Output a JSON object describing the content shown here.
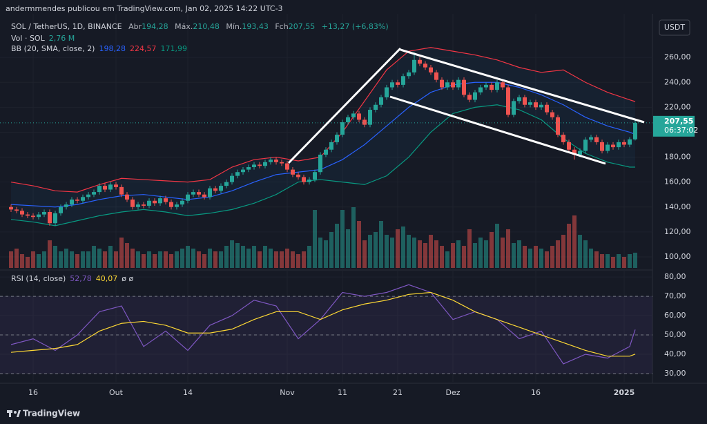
{
  "header": {
    "publisher": "andermmendes publicou em TradingView.com, Jan 02, 2025 14:22 UTC-3"
  },
  "footer": {
    "brand": "TradingView"
  },
  "chart_data": {
    "type": "candlestick",
    "symbol": "SOL / TetherUS, 1D, BINANCE",
    "ohlc_legend": [
      {
        "label": "Abr",
        "value": "194,28"
      },
      {
        "label": "Máx.",
        "value": "210,48"
      },
      {
        "label": "Mín.",
        "value": "193,43"
      },
      {
        "label": "Fch",
        "value": "207,55"
      }
    ],
    "change": "+13,27 (+6,83%)",
    "currency": "USDT",
    "last_price_label": "207,55",
    "countdown": "06:37:02",
    "up_color": "#26a69a",
    "down_color": "#ef5350",
    "open": [
      140,
      138,
      137,
      134,
      133,
      132,
      134,
      136,
      127,
      135,
      140,
      142,
      146,
      145,
      148,
      150,
      152,
      157,
      154,
      158,
      156,
      150,
      146,
      140,
      142,
      141,
      145,
      143,
      147,
      144,
      140,
      142,
      145,
      150,
      152,
      150,
      148,
      155,
      153,
      157,
      160,
      165,
      168,
      170,
      172,
      174,
      173,
      176,
      178,
      176,
      175,
      170,
      166,
      164,
      160,
      162,
      168,
      182,
      186,
      192,
      198,
      208,
      212,
      215,
      210,
      206,
      218,
      222,
      228,
      236,
      240,
      238,
      245,
      248,
      258,
      255,
      252,
      248,
      242,
      236,
      240,
      236,
      242,
      230,
      226,
      232,
      236,
      238,
      234,
      240,
      236,
      214,
      225,
      228,
      222,
      224,
      220,
      222,
      216,
      212,
      198,
      192,
      186,
      182,
      185,
      194,
      196,
      192,
      185,
      190,
      188,
      192,
      190,
      194.28
    ],
    "high": [
      142,
      140,
      139,
      136,
      135,
      136,
      138,
      138,
      137,
      142,
      144,
      148,
      148,
      150,
      152,
      154,
      159,
      159,
      160,
      160,
      158,
      152,
      148,
      144,
      144,
      147,
      147,
      149,
      149,
      146,
      144,
      147,
      152,
      154,
      154,
      152,
      157,
      157,
      159,
      162,
      167,
      170,
      172,
      174,
      176,
      176,
      178,
      180,
      180,
      178,
      177,
      172,
      168,
      166,
      164,
      170,
      184,
      188,
      194,
      200,
      210,
      214,
      217,
      217,
      212,
      220,
      224,
      230,
      238,
      242,
      242,
      247,
      250,
      264,
      260,
      257,
      254,
      250,
      244,
      242,
      242,
      244,
      244,
      232,
      234,
      238,
      240,
      240,
      242,
      242,
      238,
      227,
      230,
      230,
      226,
      226,
      224,
      224,
      218,
      214,
      200,
      194,
      188,
      187,
      196,
      198,
      198,
      194,
      192,
      192,
      194,
      194,
      196,
      210.48
    ],
    "low": [
      136,
      135,
      132,
      131,
      130,
      130,
      132,
      125,
      125,
      133,
      138,
      140,
      143,
      143,
      146,
      148,
      150,
      152,
      152,
      154,
      148,
      144,
      138,
      138,
      139,
      139,
      141,
      141,
      142,
      138,
      138,
      140,
      143,
      148,
      148,
      146,
      146,
      151,
      151,
      155,
      158,
      163,
      166,
      168,
      170,
      171,
      171,
      174,
      174,
      173,
      168,
      164,
      162,
      158,
      158,
      160,
      166,
      180,
      184,
      190,
      196,
      206,
      210,
      208,
      204,
      204,
      216,
      220,
      226,
      234,
      236,
      236,
      243,
      246,
      253,
      250,
      246,
      240,
      234,
      234,
      234,
      234,
      228,
      224,
      224,
      230,
      234,
      232,
      232,
      234,
      212,
      212,
      223,
      220,
      220,
      218,
      218,
      214,
      210,
      196,
      190,
      184,
      178,
      180,
      183,
      192,
      190,
      183,
      183,
      186,
      186,
      188,
      188,
      193.43
    ],
    "close": [
      138,
      137,
      134,
      133,
      132,
      134,
      136,
      127,
      135,
      140,
      142,
      146,
      145,
      148,
      150,
      152,
      157,
      154,
      158,
      156,
      150,
      146,
      140,
      142,
      141,
      145,
      143,
      147,
      144,
      140,
      142,
      145,
      150,
      152,
      150,
      148,
      155,
      153,
      157,
      160,
      165,
      168,
      170,
      172,
      174,
      173,
      176,
      178,
      176,
      175,
      170,
      166,
      164,
      160,
      162,
      168,
      182,
      186,
      192,
      198,
      208,
      212,
      215,
      210,
      206,
      218,
      222,
      228,
      236,
      240,
      238,
      245,
      248,
      258,
      255,
      252,
      248,
      242,
      236,
      240,
      236,
      242,
      230,
      226,
      232,
      236,
      238,
      234,
      240,
      236,
      214,
      225,
      228,
      222,
      224,
      220,
      222,
      216,
      212,
      198,
      192,
      186,
      182,
      185,
      194,
      196,
      192,
      185,
      190,
      188,
      192,
      190,
      194.28,
      207.55
    ],
    "volume": {
      "name": "Vol · SOL",
      "value_label": "2,76 M",
      "values": [
        3,
        3.5,
        2.5,
        2,
        3,
        2.5,
        3,
        5,
        4,
        3,
        3.5,
        3,
        2.5,
        3,
        3,
        4,
        3.5,
        3,
        4,
        3,
        5.5,
        4.5,
        3.5,
        3,
        2.5,
        3,
        2.5,
        3,
        3,
        2.5,
        3,
        3.5,
        4,
        3.5,
        3,
        2.5,
        3.5,
        3,
        3,
        4,
        5,
        4.5,
        4,
        3.5,
        4,
        3,
        4,
        3.5,
        3,
        3,
        3.5,
        3,
        2.5,
        3,
        4,
        10.5,
        5.5,
        5,
        6.5,
        8,
        10.5,
        7,
        11,
        8.5,
        5,
        6,
        6.5,
        8.5,
        6,
        5.5,
        7,
        7.5,
        6,
        5.5,
        5,
        4.5,
        6,
        5,
        4,
        3,
        4.5,
        5,
        4,
        7,
        4.5,
        5.5,
        5,
        6.5,
        8,
        5.5,
        7,
        4.5,
        5,
        4,
        3.5,
        4,
        3.5,
        3,
        4,
        5,
        6,
        8,
        9.5,
        6,
        5,
        3.5,
        3,
        2.5,
        2.5,
        2,
        2.5,
        2,
        2.5,
        2.76
      ]
    },
    "ylim": [
      90,
      295
    ],
    "yticks": [
      {
        "value": 100,
        "label": "100,00"
      },
      {
        "value": 120,
        "label": "120,00"
      },
      {
        "value": 140,
        "label": "140,00"
      },
      {
        "value": 160,
        "label": "160,00"
      },
      {
        "value": 180,
        "label": "180,00"
      },
      {
        "value": 200,
        "label": "200,00"
      },
      {
        "value": 220,
        "label": "220,00"
      },
      {
        "value": 240,
        "label": "240,00"
      },
      {
        "value": 260,
        "label": "260,00"
      }
    ],
    "xticks": [
      {
        "value": 4,
        "label": "16"
      },
      {
        "value": 19,
        "label": "Out"
      },
      {
        "value": 32,
        "label": "14"
      },
      {
        "value": 50,
        "label": "Nov"
      },
      {
        "value": 60,
        "label": "11"
      },
      {
        "value": 70,
        "label": "21"
      },
      {
        "value": 80,
        "label": "Dez"
      },
      {
        "value": 95,
        "label": "16"
      },
      {
        "value": 111,
        "label": "2025"
      }
    ],
    "bb": {
      "name": "BB (20, SMA, close, 2)",
      "x": [
        0,
        4,
        8,
        12,
        16,
        20,
        24,
        28,
        32,
        36,
        40,
        44,
        48,
        52,
        56,
        60,
        64,
        68,
        72,
        76,
        80,
        84,
        88,
        92,
        96,
        100,
        104,
        108,
        112,
        113
      ],
      "series": [
        {
          "color": "#2962ff",
          "value_label": "198,28",
          "values": [
            142,
            141,
            140,
            142,
            146,
            149,
            150,
            148,
            146,
            148,
            153,
            160,
            166,
            168,
            170,
            178,
            190,
            205,
            220,
            232,
            238,
            240,
            240,
            236,
            230,
            222,
            212,
            205,
            200,
            198.28
          ]
        },
        {
          "color": "#f23645",
          "value_label": "224,57",
          "values": [
            160,
            157,
            153,
            152,
            158,
            163,
            162,
            161,
            160,
            162,
            172,
            178,
            180,
            177,
            180,
            200,
            225,
            250,
            265,
            268,
            265,
            262,
            258,
            252,
            248,
            250,
            240,
            232,
            226,
            224.57
          ]
        },
        {
          "color": "#089981",
          "value_label": "171,99",
          "values": [
            130,
            128,
            125,
            129,
            133,
            136,
            138,
            136,
            133,
            135,
            138,
            143,
            150,
            160,
            162,
            160,
            158,
            165,
            180,
            200,
            215,
            220,
            222,
            218,
            210,
            195,
            183,
            176,
            172,
            171.99
          ]
        }
      ]
    },
    "rsi": {
      "name": "RSI (14, close)",
      "na_labels": "ø ø",
      "x": [
        0,
        4,
        8,
        12,
        16,
        20,
        24,
        28,
        32,
        36,
        40,
        44,
        48,
        52,
        56,
        60,
        64,
        68,
        72,
        76,
        80,
        84,
        88,
        92,
        96,
        100,
        104,
        108,
        112,
        113
      ],
      "series": [
        {
          "color": "#7e57c2",
          "value_label": "52,78",
          "values": [
            45,
            48,
            42,
            50,
            62,
            65,
            44,
            52,
            42,
            55,
            60,
            68,
            65,
            48,
            58,
            72,
            70,
            72,
            76,
            72,
            58,
            62,
            58,
            48,
            52,
            35,
            40,
            38,
            44,
            52.78
          ]
        },
        {
          "color": "#fdd835",
          "value_label": "40,07",
          "values": [
            41,
            42,
            43,
            45,
            52,
            56,
            57,
            55,
            51,
            51,
            53,
            58,
            62,
            62,
            58,
            63,
            66,
            68,
            71,
            72,
            68,
            62,
            58,
            54,
            50,
            46,
            42,
            39,
            39,
            40.07
          ]
        }
      ],
      "ylim": [
        25.7,
        82.9
      ],
      "yticks": [
        {
          "value": 30,
          "label": "30,00"
        },
        {
          "value": 40,
          "label": "40,00"
        },
        {
          "value": 50,
          "label": "50,00"
        },
        {
          "value": 60,
          "label": "60,00"
        },
        {
          "value": 70,
          "label": "70,00"
        },
        {
          "value": 80,
          "label": "80,00"
        }
      ],
      "bands": [
        70,
        50,
        30
      ]
    }
  }
}
